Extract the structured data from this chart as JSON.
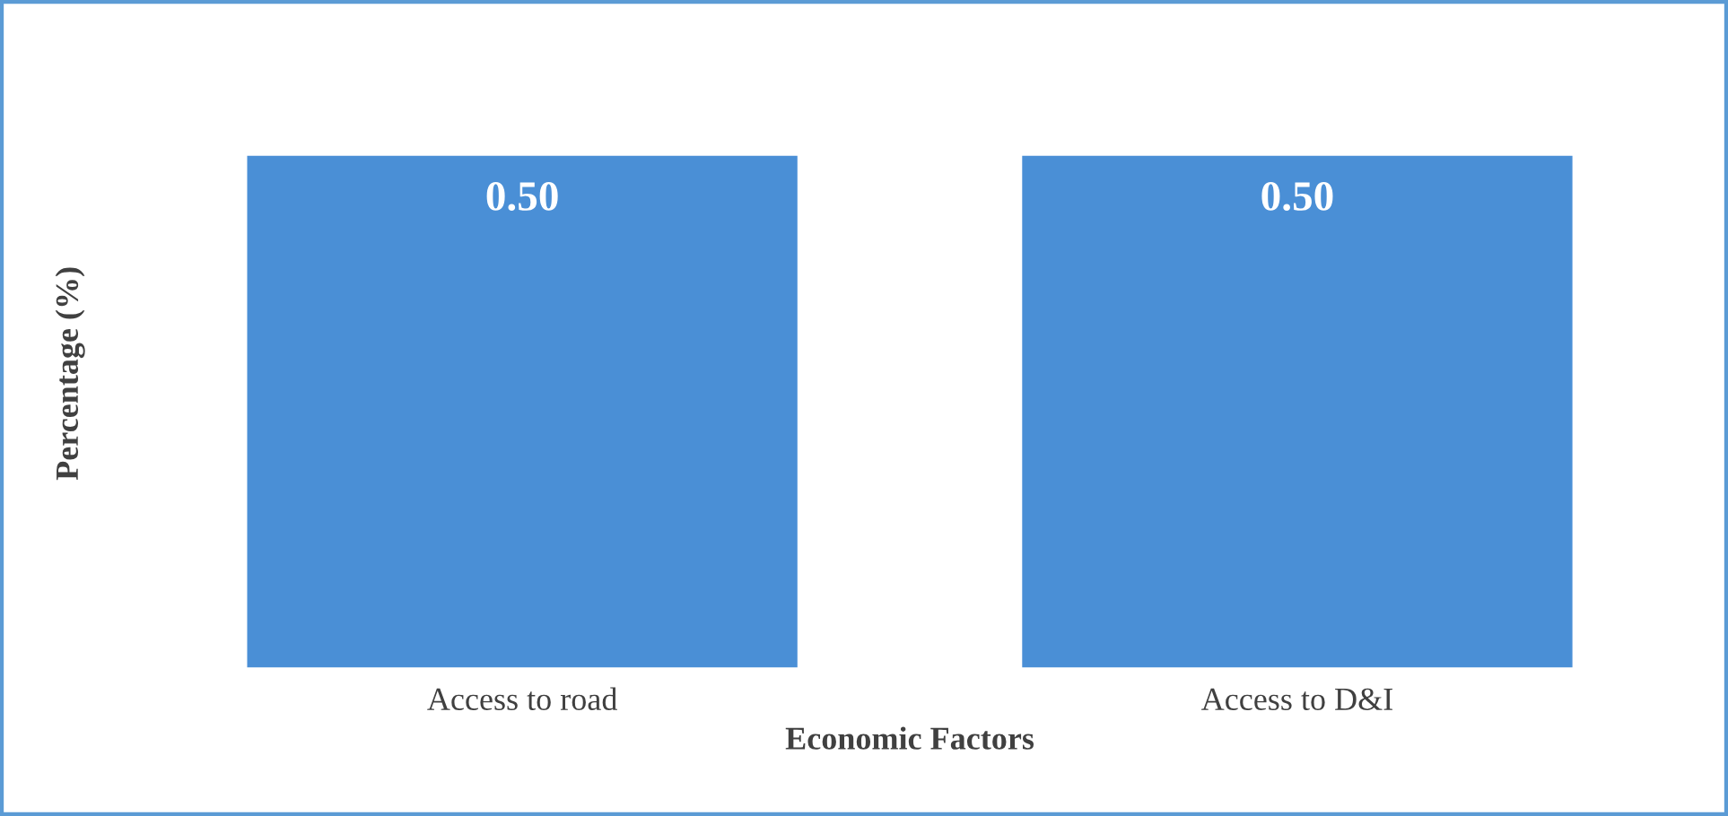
{
  "chart_data": {
    "type": "bar",
    "xlabel": "Economic Factors",
    "ylabel": "Percentage (%)",
    "categories": [
      "Access to road",
      "Access to D&I"
    ],
    "values": [
      0.5,
      0.5
    ],
    "value_labels": [
      "0.50",
      "0.50"
    ],
    "color": "#4a8fd6",
    "tick_labels": "x",
    "grid": false,
    "legend": false
  }
}
